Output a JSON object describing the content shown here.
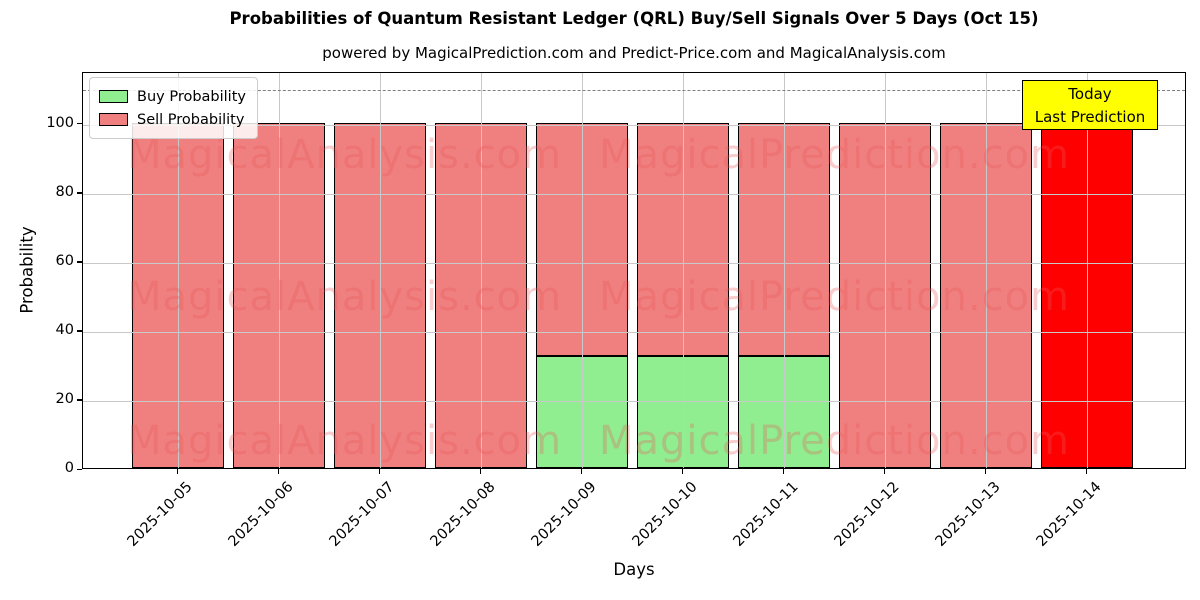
{
  "chart_data": {
    "type": "bar",
    "stacked": true,
    "title": "Probabilities of Quantum Resistant Ledger (QRL) Buy/Sell Signals Over 5 Days (Oct 15)",
    "subtitle": "powered by MagicalPrediction.com and Predict-Price.com and MagicalAnalysis.com",
    "xlabel": "Days",
    "ylabel": "Probability",
    "categories": [
      "2025-10-05",
      "2025-10-06",
      "2025-10-07",
      "2025-10-08",
      "2025-10-09",
      "2025-10-10",
      "2025-10-11",
      "2025-10-12",
      "2025-10-13",
      "2025-10-14"
    ],
    "series": [
      {
        "name": "Buy Probability",
        "color": "#90EE90",
        "values": [
          0,
          0,
          0,
          0,
          32.5,
          32.5,
          32.5,
          0,
          0,
          0
        ]
      },
      {
        "name": "Sell Probability",
        "color": "#F08080",
        "values": [
          100,
          100,
          100,
          100,
          67.5,
          67.5,
          67.5,
          100,
          100,
          100
        ]
      }
    ],
    "highlight": {
      "category": "2025-10-14",
      "bar_color": "#FF0000",
      "value": 100,
      "label_lines": [
        "Today",
        "Last Prediction"
      ],
      "box_color": "#FFFF00"
    },
    "ylim": [
      0,
      115
    ],
    "yticks": [
      0,
      20,
      40,
      60,
      80,
      100
    ],
    "threshold_line": {
      "y": 110,
      "style": "dashed",
      "color": "#7f7f7f"
    },
    "grid": true,
    "legend_position": "upper-left",
    "bar_edge_color": "#000000",
    "watermarks": {
      "left": "MagicalAnalysis.com",
      "right": "MagicalPrediction.com"
    }
  }
}
